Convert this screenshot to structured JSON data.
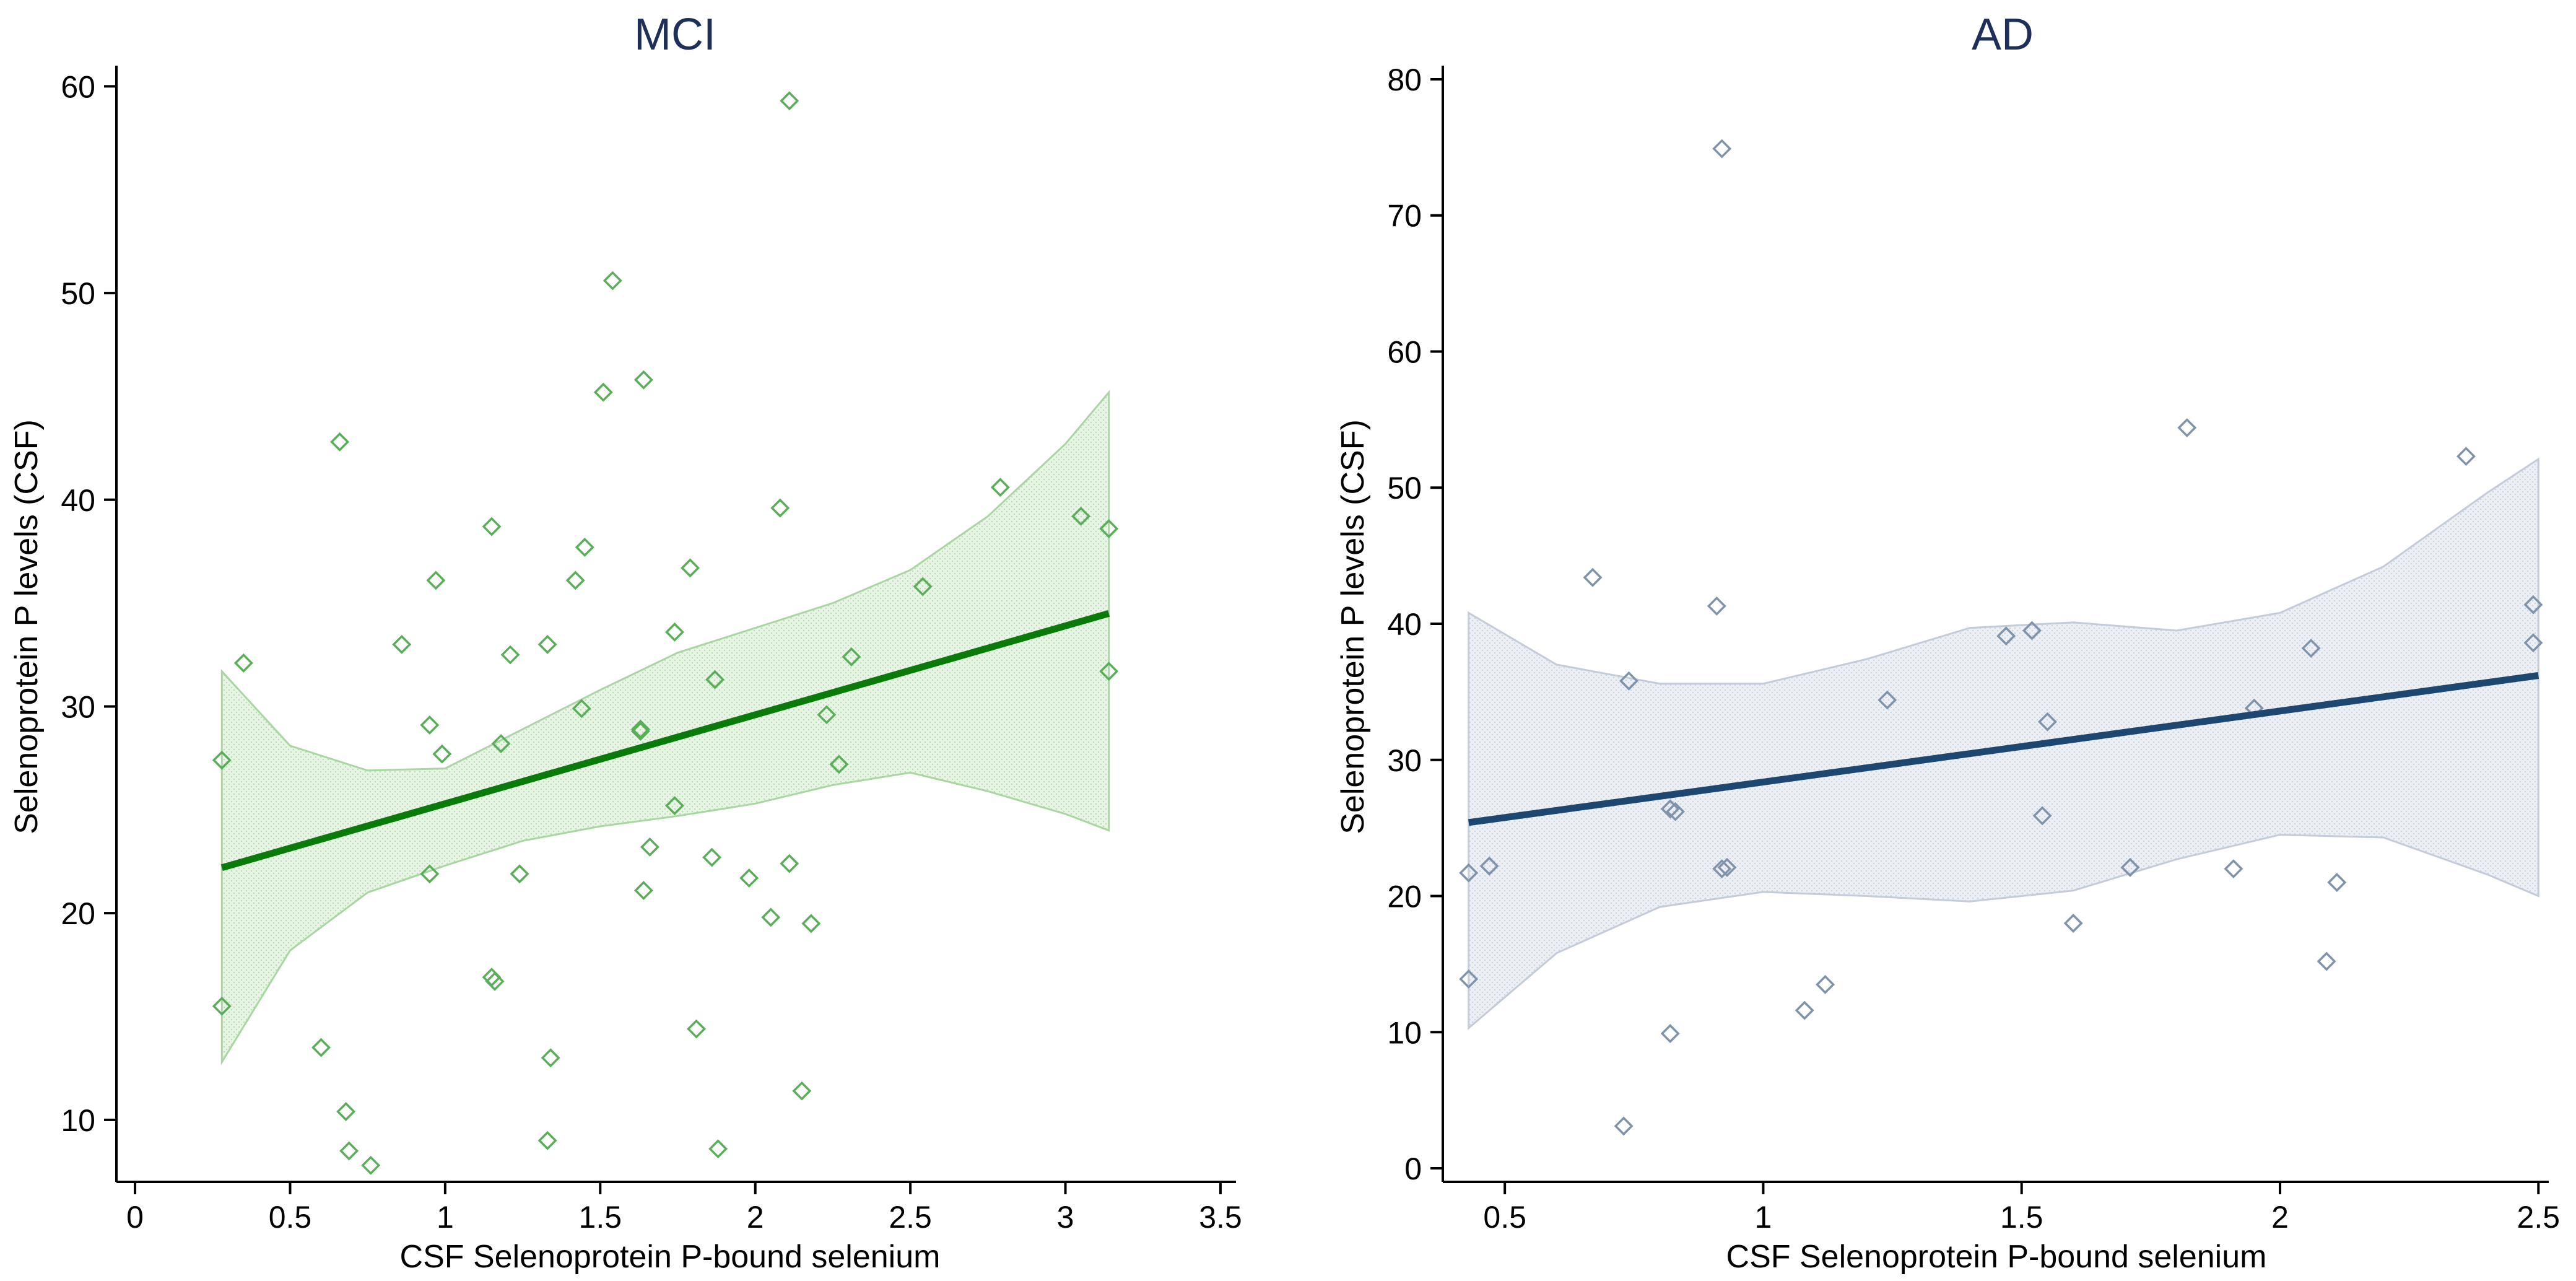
{
  "chart_data": [
    {
      "type": "scatter",
      "title": "MCI",
      "xlabel": "CSF Selenoprotein P-bound selenium",
      "ylabel": "Selenoprotein P levels (CSF)",
      "xlim": [
        -0.06,
        3.55
      ],
      "ylim": [
        7,
        61
      ],
      "xticks": [
        0,
        0.5,
        1,
        1.5,
        2,
        2.5,
        3,
        3.5
      ],
      "xtick_labels": [
        "0",
        "0.5",
        "1",
        "1.5",
        "2",
        "2.5",
        "3",
        "3.5"
      ],
      "yticks": [
        10,
        20,
        30,
        40,
        50,
        60
      ],
      "ytick_labels": [
        "10",
        "20",
        "30",
        "40",
        "50",
        "60"
      ],
      "colors": {
        "marker": "#5aae5a",
        "line": "#0a7a0a",
        "band_fill": "#dff0dc",
        "band_edge": "#a9d6a2"
      },
      "points": {
        "x": [
          0.28,
          0.35,
          0.28,
          0.6,
          0.66,
          0.68,
          0.69,
          0.76,
          0.86,
          0.95,
          0.97,
          0.95,
          0.99,
          1.15,
          1.16,
          1.15,
          1.18,
          1.21,
          1.24,
          1.33,
          1.34,
          1.33,
          1.42,
          1.44,
          1.45,
          1.51,
          1.54,
          1.63,
          1.63,
          1.64,
          1.64,
          1.66,
          1.74,
          1.74,
          1.79,
          1.81,
          1.86,
          1.87,
          1.88,
          1.98,
          2.05,
          2.08,
          2.11,
          2.11,
          2.15,
          2.18,
          2.23,
          2.27,
          2.31,
          2.54,
          2.79,
          3.05,
          3.14,
          3.14
        ],
        "y": [
          27.4,
          32.1,
          15.5,
          13.5,
          42.8,
          10.4,
          8.5,
          7.8,
          33.0,
          29.1,
          36.1,
          21.9,
          27.7,
          38.7,
          16.7,
          16.9,
          28.2,
          32.5,
          21.9,
          33.0,
          13.0,
          9.0,
          36.1,
          29.9,
          37.7,
          45.2,
          50.6,
          28.8,
          28.9,
          45.8,
          21.1,
          23.2,
          33.6,
          25.2,
          36.7,
          14.4,
          22.7,
          31.3,
          8.6,
          21.7,
          19.8,
          39.6,
          59.3,
          22.4,
          11.4,
          19.5,
          29.6,
          27.2,
          32.4,
          35.8,
          40.6,
          39.2,
          38.6,
          31.7
        ]
      },
      "fit_line": {
        "x": [
          0.28,
          3.14
        ],
        "y": [
          22.2,
          34.5
        ]
      },
      "confidence_band": {
        "x": [
          0.28,
          0.5,
          0.75,
          1.0,
          1.25,
          1.5,
          1.75,
          2.0,
          2.25,
          2.5,
          2.75,
          3.0,
          3.14
        ],
        "lower": [
          12.8,
          18.2,
          21.0,
          22.3,
          23.5,
          24.2,
          24.7,
          25.3,
          26.2,
          26.8,
          25.9,
          24.8,
          24.0
        ],
        "upper": [
          31.7,
          28.1,
          26.9,
          27.0,
          28.9,
          30.8,
          32.6,
          33.8,
          35.0,
          36.6,
          39.2,
          42.7,
          45.2
        ]
      }
    },
    {
      "type": "scatter",
      "title": "AD",
      "xlabel": "CSF Selenoprotein P-bound selenium",
      "ylabel": "Selenoprotein P levels (CSF)",
      "xlim": [
        0.38,
        2.52
      ],
      "ylim": [
        -1,
        81
      ],
      "xticks": [
        0.5,
        1,
        1.5,
        2,
        2.5
      ],
      "xtick_labels": [
        "0.5",
        "1",
        "1.5",
        "2",
        "2.5"
      ],
      "yticks": [
        0,
        10,
        20,
        30,
        40,
        50,
        60,
        70,
        80
      ],
      "ytick_labels": [
        "0",
        "10",
        "20",
        "30",
        "40",
        "50",
        "60",
        "70",
        "80"
      ],
      "colors": {
        "marker": "#7f93ab",
        "line": "#1d4670",
        "band_fill": "#e2e7ee",
        "band_edge": "#c3ccd8"
      },
      "points": {
        "x": [
          0.43,
          0.43,
          0.47,
          0.67,
          0.73,
          0.74,
          0.82,
          0.82,
          0.83,
          0.91,
          0.92,
          0.93,
          0.92,
          1.08,
          1.12,
          1.24,
          1.47,
          1.52,
          1.54,
          1.55,
          1.6,
          1.71,
          1.82,
          1.91,
          1.95,
          2.06,
          2.09,
          2.11,
          2.36,
          2.49,
          2.49
        ],
        "y": [
          21.7,
          13.9,
          22.2,
          43.4,
          3.1,
          35.8,
          26.4,
          9.9,
          26.2,
          41.3,
          74.9,
          22.1,
          22.0,
          11.6,
          13.5,
          34.4,
          39.1,
          39.5,
          25.9,
          32.8,
          18.0,
          22.1,
          54.4,
          22.0,
          33.8,
          38.2,
          15.2,
          21.0,
          52.3,
          41.4,
          38.6
        ]
      },
      "fit_line": {
        "x": [
          0.43,
          2.5
        ],
        "y": [
          25.4,
          36.2
        ]
      },
      "confidence_band": {
        "x": [
          0.43,
          0.6,
          0.8,
          1.0,
          1.2,
          1.4,
          1.6,
          1.8,
          2.0,
          2.2,
          2.4,
          2.5
        ],
        "lower": [
          10.3,
          15.8,
          19.2,
          20.3,
          20.0,
          19.6,
          20.4,
          22.7,
          24.5,
          24.3,
          21.6,
          20.0
        ],
        "upper": [
          40.8,
          37.0,
          35.6,
          35.6,
          37.4,
          39.7,
          40.1,
          39.5,
          40.8,
          44.2,
          49.6,
          52.1
        ]
      }
    }
  ]
}
